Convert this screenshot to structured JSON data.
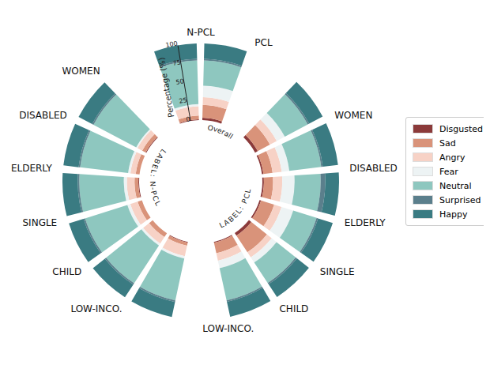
{
  "chart_data": {
    "type": "radial_stacked_bar",
    "ylabel": "Percentage (%)",
    "annotations": [
      "Overall",
      "LABEL: N-PCL",
      "LABEL: PCL"
    ],
    "categories": [
      "N-PCL",
      "PCL",
      null,
      "WOMEN",
      "DISABLED",
      "ELDERLY",
      "SINGLE",
      "CHILD",
      "LOW-INCO.",
      null,
      "LOW-INCO.",
      "CHILD",
      "SINGLE",
      "ELDERLY",
      "DISABLED",
      "WOMEN",
      null
    ],
    "ylim": [
      0,
      100
    ],
    "yticks": [
      0,
      25,
      50,
      75,
      100
    ],
    "stacked": true,
    "legend": "right",
    "series": [
      {
        "name": "Disgusted",
        "color": "#8b3a3a",
        "values": [
          1,
          3,
          null,
          4,
          2,
          2,
          2,
          4,
          1,
          null,
          1,
          0,
          0,
          1,
          0,
          1,
          null
        ]
      },
      {
        "name": "Sad",
        "color": "#d9937a",
        "values": [
          5,
          17,
          null,
          18,
          12,
          12,
          18,
          26,
          14,
          null,
          4,
          6,
          6,
          5,
          5,
          5,
          null
        ]
      },
      {
        "name": "Angry",
        "color": "#f7d2c6",
        "values": [
          12,
          10,
          null,
          10,
          12,
          12,
          10,
          8,
          10,
          null,
          14,
          10,
          10,
          10,
          7,
          7,
          null
        ]
      },
      {
        "name": "Fear",
        "color": "#edf3f4",
        "values": [
          3,
          15,
          null,
          12,
          10,
          16,
          16,
          8,
          10,
          null,
          3,
          3,
          4,
          4,
          3,
          2,
          null
        ]
      },
      {
        "name": "Neutral",
        "color": "#8ec7bf",
        "values": [
          57,
          33,
          null,
          34,
          42,
          34,
          32,
          32,
          43,
          null,
          56,
          59,
          58,
          58,
          63,
          63,
          null
        ]
      },
      {
        "name": "Surprised",
        "color": "#5b7f8c",
        "values": [
          2,
          2,
          null,
          2,
          2,
          6,
          2,
          2,
          2,
          null,
          2,
          2,
          2,
          2,
          2,
          2,
          null
        ]
      },
      {
        "name": "Happy",
        "color": "#3a7b82",
        "values": [
          20,
          20,
          null,
          20,
          20,
          18,
          20,
          20,
          20,
          null,
          20,
          20,
          20,
          20,
          20,
          20,
          null
        ]
      }
    ]
  }
}
